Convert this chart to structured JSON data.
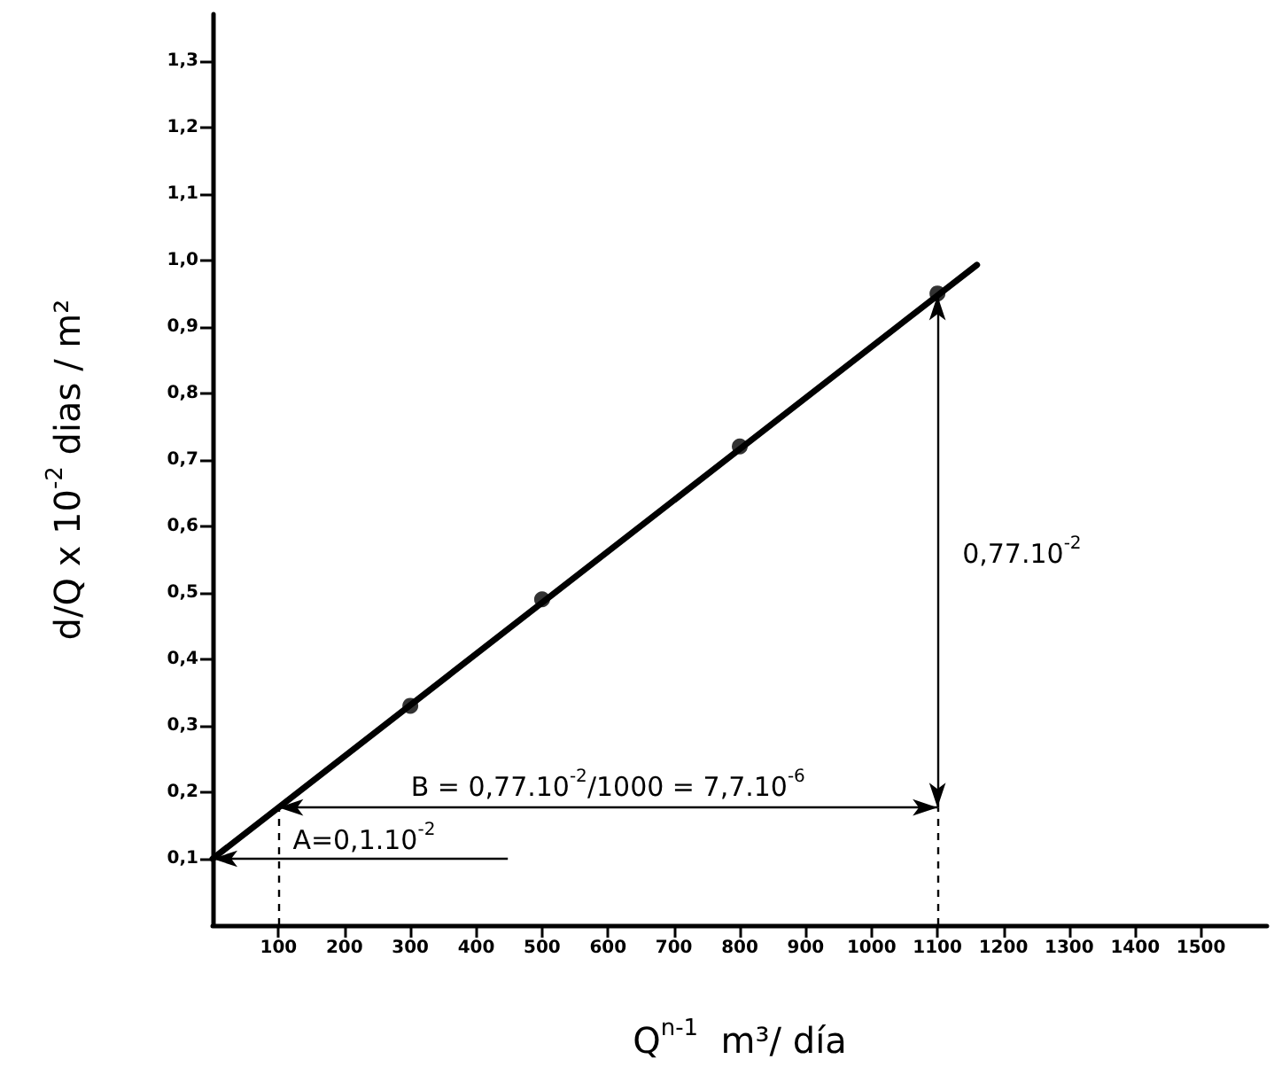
{
  "chart_data": {
    "type": "scatter",
    "xlabel": "Q$^{n-1}$  m³/ día",
    "ylabel": "d/Q x 10$^{-2}$ dias / m²",
    "xlim": [
      0,
      1600
    ],
    "ylim": [
      0,
      1.37
    ],
    "xticks": [
      100,
      200,
      300,
      400,
      500,
      600,
      700,
      800,
      900,
      1000,
      1100,
      1200,
      1300,
      1400,
      1500
    ],
    "yticks": [
      {
        "value": 0.1,
        "label": "0,1"
      },
      {
        "value": 0.2,
        "label": "0,2"
      },
      {
        "value": 0.3,
        "label": "0,3"
      },
      {
        "value": 0.4,
        "label": "0,4"
      },
      {
        "value": 0.5,
        "label": "0,5"
      },
      {
        "value": 0.6,
        "label": "0,6"
      },
      {
        "value": 0.7,
        "label": "0,7"
      },
      {
        "value": 0.8,
        "label": "0,8"
      },
      {
        "value": 0.9,
        "label": "0,9"
      },
      {
        "value": 1.0,
        "label": "1,0"
      },
      {
        "value": 1.1,
        "label": "1,1"
      },
      {
        "value": 1.2,
        "label": "1,2"
      },
      {
        "value": 1.3,
        "label": "1,3"
      }
    ],
    "grid": false,
    "legend": false,
    "marker": "circle",
    "series": [
      {
        "color": "#000000",
        "x": [
          300,
          500,
          800,
          1100
        ],
        "values": [
          0.33,
          0.49,
          0.72,
          0.95
        ]
      },
      {
        "type": "line",
        "color": "#000000",
        "marker": "none",
        "line_style": "solid",
        "x": [
          0,
          100,
          1100,
          1160
        ],
        "values": [
          0.1,
          0.177,
          0.947,
          0.993
        ]
      }
    ],
    "annotations": [
      "A=0,1.10$^{-2}$",
      "B = 0,77.10$^{-2}$/1000 = 7,7.10$^{-6}$",
      "0,77.10$^{-2}$"
    ]
  }
}
